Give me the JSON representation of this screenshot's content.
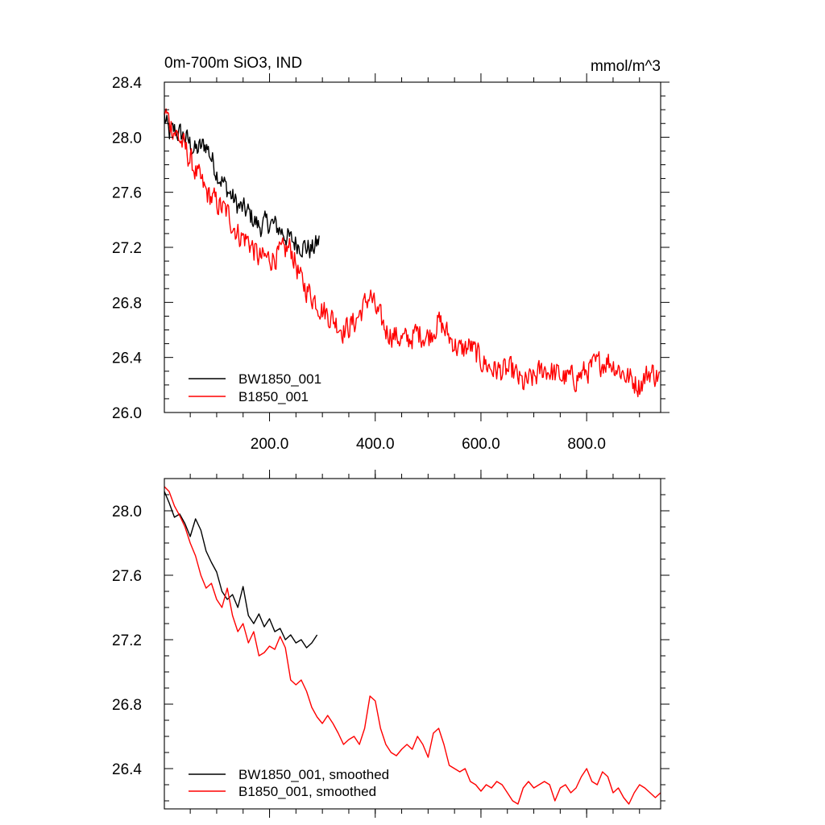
{
  "chart_data": [
    {
      "type": "line",
      "title_left": "0m-700m SiO3, IND",
      "title_right": "mmol/m^3",
      "xlim": [
        1,
        940
      ],
      "ylim": [
        26.0,
        28.4
      ],
      "x_major_ticks": [
        200,
        400,
        600,
        800
      ],
      "x_tick_labels": [
        "200.0",
        "400.0",
        "600.0",
        "800.0"
      ],
      "x_minor_ticks": [
        50,
        100,
        150,
        250,
        300,
        350,
        450,
        500,
        550,
        650,
        700,
        750,
        850,
        900
      ],
      "y_major_ticks": [
        26.0,
        26.4,
        26.8,
        27.2,
        27.6,
        28.0,
        28.4
      ],
      "y_tick_labels": [
        "26.0",
        "26.4",
        "26.8",
        "27.2",
        "27.6",
        "28.0",
        "28.4"
      ],
      "y_minor_step": 0.1,
      "grid": false,
      "legend_position": "bottom-left",
      "series": [
        {
          "name": "BW1850_001",
          "color": "#000000",
          "noise": 0.1,
          "x": [
            1,
            10,
            20,
            40,
            60,
            80,
            100,
            120,
            140,
            160,
            180,
            200,
            220,
            240,
            260,
            280,
            295
          ],
          "y": [
            28.15,
            28.02,
            28.05,
            28.0,
            27.9,
            27.95,
            27.75,
            27.62,
            27.5,
            27.45,
            27.35,
            27.38,
            27.33,
            27.25,
            27.22,
            27.18,
            27.25
          ]
        },
        {
          "name": "B1850_001",
          "color": "#ff0000",
          "noise": 0.11,
          "x": [
            1,
            10,
            20,
            40,
            60,
            80,
            100,
            120,
            140,
            160,
            180,
            200,
            220,
            240,
            260,
            280,
            300,
            320,
            340,
            360,
            380,
            390,
            400,
            420,
            440,
            460,
            480,
            500,
            520,
            540,
            560,
            580,
            600,
            620,
            640,
            660,
            680,
            700,
            720,
            740,
            760,
            780,
            800,
            820,
            840,
            860,
            880,
            900,
            920,
            940
          ],
          "y": [
            28.2,
            28.12,
            28.05,
            27.92,
            27.75,
            27.6,
            27.52,
            27.45,
            27.3,
            27.25,
            27.12,
            27.12,
            27.15,
            27.2,
            26.95,
            26.85,
            26.75,
            26.68,
            26.6,
            26.65,
            26.78,
            26.86,
            26.75,
            26.6,
            26.55,
            26.52,
            26.58,
            26.55,
            26.66,
            26.55,
            26.45,
            26.48,
            26.38,
            26.32,
            26.3,
            26.3,
            26.2,
            26.25,
            26.32,
            26.28,
            26.25,
            26.25,
            26.3,
            26.35,
            26.38,
            26.32,
            26.25,
            26.2,
            26.3,
            26.25
          ]
        }
      ]
    },
    {
      "type": "line",
      "xlim": [
        1,
        940
      ],
      "ylim": [
        26.15,
        28.2
      ],
      "x_minor_ticks": [
        50,
        100,
        150,
        200,
        250,
        300,
        350,
        400,
        450,
        500,
        550,
        600,
        650,
        700,
        750,
        800,
        850,
        900
      ],
      "x_major_ticks": [
        200,
        400,
        600,
        800
      ],
      "y_major_ticks": [
        26.4,
        26.8,
        27.2,
        27.6,
        28.0
      ],
      "y_tick_labels": [
        "26.4",
        "26.8",
        "27.2",
        "27.6",
        "28.0"
      ],
      "y_minor_step": 0.1,
      "grid": false,
      "legend_position": "bottom-left",
      "series": [
        {
          "name": "BW1850_001, smoothed",
          "color": "#000000",
          "noise": 0,
          "x": [
            1,
            10,
            20,
            30,
            40,
            50,
            60,
            70,
            80,
            90,
            100,
            110,
            120,
            130,
            140,
            150,
            160,
            170,
            180,
            190,
            200,
            210,
            220,
            230,
            240,
            250,
            260,
            270,
            280,
            290
          ],
          "y": [
            28.12,
            28.05,
            27.96,
            27.98,
            27.92,
            27.84,
            27.95,
            27.88,
            27.75,
            27.68,
            27.62,
            27.5,
            27.45,
            27.48,
            27.4,
            27.53,
            27.35,
            27.3,
            27.36,
            27.28,
            27.33,
            27.25,
            27.27,
            27.2,
            27.23,
            27.18,
            27.2,
            27.15,
            27.18,
            27.23
          ]
        },
        {
          "name": "B1850_001, smoothed",
          "color": "#ff0000",
          "noise": 0,
          "x": [
            1,
            10,
            20,
            30,
            40,
            50,
            60,
            70,
            80,
            90,
            100,
            110,
            120,
            130,
            140,
            150,
            160,
            170,
            180,
            190,
            200,
            210,
            220,
            230,
            240,
            250,
            260,
            270,
            280,
            290,
            300,
            310,
            320,
            330,
            340,
            350,
            360,
            370,
            380,
            390,
            400,
            410,
            420,
            430,
            440,
            450,
            460,
            470,
            480,
            490,
            500,
            510,
            520,
            530,
            540,
            550,
            560,
            570,
            580,
            590,
            600,
            610,
            620,
            630,
            640,
            650,
            660,
            670,
            680,
            690,
            700,
            710,
            720,
            730,
            740,
            750,
            760,
            770,
            780,
            790,
            800,
            810,
            820,
            830,
            840,
            850,
            860,
            870,
            880,
            890,
            900,
            910,
            920,
            930,
            940
          ],
          "y": [
            28.15,
            28.12,
            28.03,
            27.97,
            27.9,
            27.8,
            27.72,
            27.6,
            27.52,
            27.55,
            27.45,
            27.4,
            27.52,
            27.35,
            27.25,
            27.3,
            27.18,
            27.25,
            27.1,
            27.12,
            27.16,
            27.14,
            27.22,
            27.15,
            26.95,
            26.92,
            26.95,
            26.88,
            26.78,
            26.72,
            26.68,
            26.73,
            26.68,
            26.62,
            26.55,
            26.58,
            26.6,
            26.55,
            26.65,
            26.85,
            26.82,
            26.65,
            26.55,
            26.5,
            26.48,
            26.52,
            26.55,
            26.52,
            26.6,
            26.55,
            26.47,
            26.62,
            26.65,
            26.55,
            26.42,
            26.4,
            26.38,
            26.4,
            26.32,
            26.3,
            26.26,
            26.3,
            26.28,
            26.32,
            26.3,
            26.25,
            26.2,
            26.18,
            26.28,
            26.32,
            26.28,
            26.3,
            26.32,
            26.3,
            26.2,
            26.28,
            26.3,
            26.25,
            26.28,
            26.35,
            26.4,
            26.32,
            26.3,
            26.38,
            26.35,
            26.25,
            26.28,
            26.22,
            26.18,
            26.25,
            26.3,
            26.28,
            26.25,
            26.22,
            26.25
          ]
        }
      ]
    }
  ]
}
